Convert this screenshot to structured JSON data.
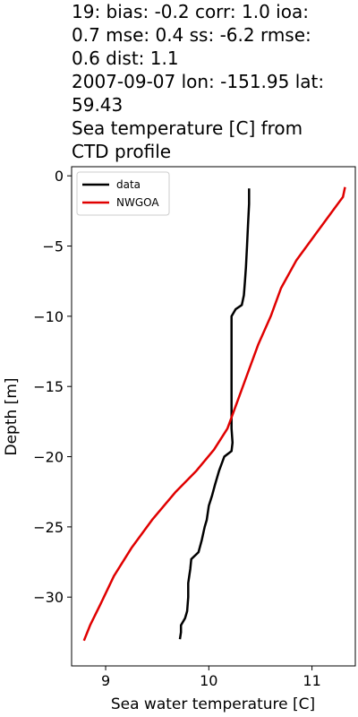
{
  "title_lines": [
    "19: bias: -0.2  corr: 1.0  ioa:",
    "0.7  mse: 0.4  ss: -6.2  rmse:",
    "0.6  dist: 1.1",
    "2007-09-07 lon: -151.95 lat:",
    "59.43",
    "Sea temperature [C] from",
    "CTD profile"
  ],
  "chart_data": {
    "type": "line",
    "title": "19: bias: -0.2  corr: 1.0  ioa: 0.7  mse: 0.4  ss: -6.2  rmse: 0.6  dist: 1.1 2007-09-07 lon: -151.95 lat: 59.43 Sea temperature [C] from CTD profile",
    "xlabel": "Sea water temperature [C]",
    "ylabel": "Depth [m]",
    "xlim": [
      8.67,
      11.42
    ],
    "ylim": [
      -34.9,
      0.65
    ],
    "xticks": [
      9,
      10,
      11
    ],
    "yticks": [
      0,
      -5,
      -10,
      -15,
      -20,
      -25,
      -30
    ],
    "grid": false,
    "legend_position": "top-left",
    "series": [
      {
        "name": "data",
        "color": "#000000",
        "points": [
          [
            10.39,
            -0.9
          ],
          [
            10.39,
            -2.0
          ],
          [
            10.38,
            -3.5
          ],
          [
            10.37,
            -5.0
          ],
          [
            10.36,
            -6.5
          ],
          [
            10.35,
            -7.5
          ],
          [
            10.34,
            -8.5
          ],
          [
            10.32,
            -9.2
          ],
          [
            10.26,
            -9.5
          ],
          [
            10.22,
            -10.0
          ],
          [
            10.22,
            -12.0
          ],
          [
            10.22,
            -14.0
          ],
          [
            10.22,
            -16.0
          ],
          [
            10.22,
            -17.0
          ],
          [
            10.22,
            -18.0
          ],
          [
            10.23,
            -19.0
          ],
          [
            10.22,
            -19.6
          ],
          [
            10.15,
            -20.0
          ],
          [
            10.1,
            -21.0
          ],
          [
            10.06,
            -22.0
          ],
          [
            10.03,
            -22.8
          ],
          [
            10.0,
            -23.5
          ],
          [
            9.98,
            -24.5
          ],
          [
            9.96,
            -25.0
          ],
          [
            9.93,
            -26.0
          ],
          [
            9.9,
            -26.8
          ],
          [
            9.83,
            -27.3
          ],
          [
            9.82,
            -28.0
          ],
          [
            9.8,
            -29.0
          ],
          [
            9.8,
            -30.0
          ],
          [
            9.79,
            -31.0
          ],
          [
            9.77,
            -31.5
          ],
          [
            9.73,
            -32.0
          ],
          [
            9.73,
            -32.5
          ],
          [
            9.72,
            -33.0
          ]
        ]
      },
      {
        "name": "NWGOA",
        "color": "#e00000",
        "points": [
          [
            11.32,
            -0.8
          ],
          [
            11.3,
            -1.5
          ],
          [
            11.2,
            -2.5
          ],
          [
            11.05,
            -4.0
          ],
          [
            10.85,
            -6.0
          ],
          [
            10.7,
            -8.0
          ],
          [
            10.6,
            -10.0
          ],
          [
            10.48,
            -12.0
          ],
          [
            10.38,
            -14.0
          ],
          [
            10.28,
            -16.0
          ],
          [
            10.18,
            -18.0
          ],
          [
            10.05,
            -19.5
          ],
          [
            9.88,
            -21.0
          ],
          [
            9.68,
            -22.5
          ],
          [
            9.45,
            -24.5
          ],
          [
            9.25,
            -26.5
          ],
          [
            9.08,
            -28.5
          ],
          [
            8.95,
            -30.5
          ],
          [
            8.85,
            -32.0
          ],
          [
            8.79,
            -33.1
          ]
        ]
      }
    ]
  }
}
